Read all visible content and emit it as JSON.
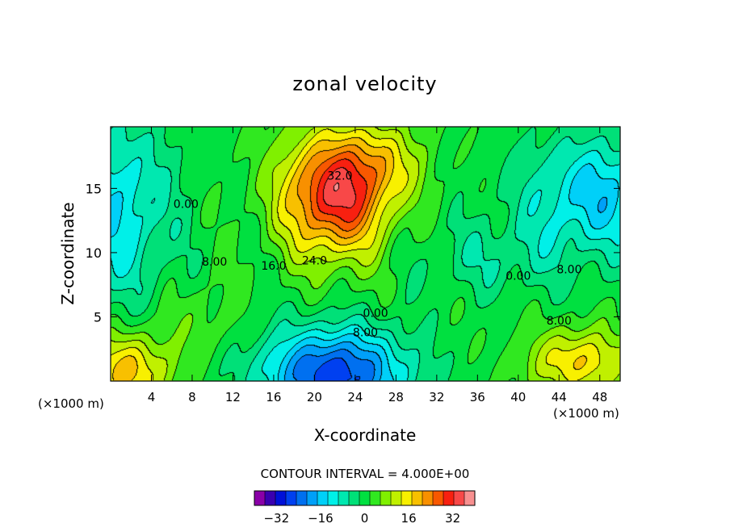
{
  "chart_data": {
    "type": "heatmap",
    "title": "zonal velocity",
    "xlabel": "X-coordinate",
    "ylabel": "Z-coordinate",
    "x_units": "(×1000 m)",
    "z_units": "(×1000 m)",
    "xlim": [
      0,
      50
    ],
    "ylim": [
      0,
      19.8
    ],
    "x_ticks": [
      "4",
      "8",
      "12",
      "16",
      "20",
      "24",
      "28",
      "32",
      "36",
      "40",
      "44",
      "48"
    ],
    "y_ticks": [
      "5",
      "10",
      "15"
    ],
    "contour_interval_text": "CONTOUR INTERVAL = 4.000E+00",
    "contour_interval": 4,
    "contour_labels": [
      "32.0",
      "24.0",
      "16.0",
      "8.00",
      "0.00",
      "0.00",
      "8.00",
      "0.00",
      "8.00",
      "8.00"
    ],
    "colorbar": {
      "levels": [
        -40,
        -36,
        -32,
        -28,
        -24,
        -20,
        -16,
        -12,
        -8,
        -4,
        0,
        4,
        8,
        12,
        16,
        20,
        24,
        28,
        32,
        36,
        40
      ],
      "tick_labels": [
        "-32",
        "-16",
        "0",
        "16",
        "32"
      ],
      "tick_values": [
        -32,
        -16,
        0,
        16,
        32
      ],
      "colors": [
        "#8a00a8",
        "#3a00b0",
        "#0010d8",
        "#0040f0",
        "#0070f0",
        "#00a0f8",
        "#00d0f8",
        "#00f0e8",
        "#00e8b0",
        "#00e078",
        "#00e040",
        "#30e820",
        "#80f000",
        "#c0f000",
        "#f8f000",
        "#f8c000",
        "#f89000",
        "#f85800",
        "#f82010",
        "#f84848",
        "#f89090"
      ]
    },
    "field_features": [
      {
        "x": 22,
        "z": 14.5,
        "value": 36,
        "description": "jet maximum"
      },
      {
        "x": 50,
        "z": 14.5,
        "value": -14,
        "description": "right upper minimum"
      },
      {
        "x": 0,
        "z": 15,
        "value": -12,
        "description": "left upper minimum"
      },
      {
        "x": 22,
        "z": 0.5,
        "value": -26,
        "description": "bottom minimum"
      },
      {
        "x": 1.5,
        "z": 1,
        "value": 22,
        "description": "bottom-left maximum"
      },
      {
        "x": 46,
        "z": 1.5,
        "value": 20,
        "description": "bottom-right maximum"
      }
    ]
  }
}
